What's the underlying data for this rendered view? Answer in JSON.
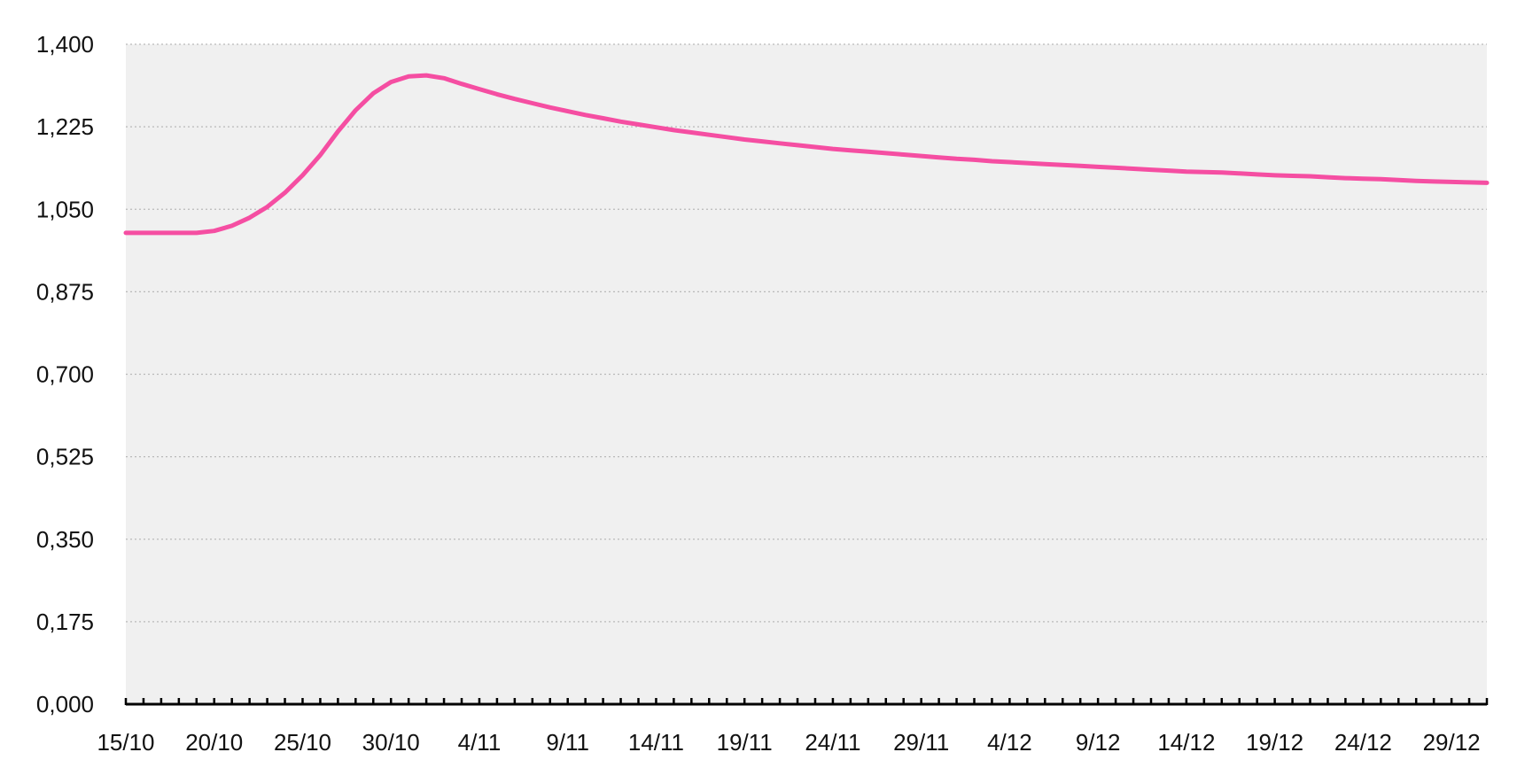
{
  "chart_data": {
    "type": "line",
    "title": "",
    "xlabel": "",
    "ylabel": "",
    "ylim": [
      0,
      1.4
    ],
    "yticks": [
      0,
      0.175,
      0.35,
      0.525,
      0.7,
      0.875,
      1.05,
      1.225,
      1.4
    ],
    "ytick_labels": [
      "0,000",
      "0,175",
      "0,350",
      "0,525",
      "0,700",
      "0,875",
      "1,050",
      "1,225",
      "1,400"
    ],
    "x_start": "15/10",
    "x_end": "31/12",
    "x_count": 78,
    "xtick_labels": [
      "15/10",
      "20/10",
      "25/10",
      "30/10",
      "4/11",
      "9/11",
      "14/11",
      "19/11",
      "24/11",
      "29/11",
      "4/12",
      "9/12",
      "14/12",
      "19/12",
      "24/12",
      "29/12"
    ],
    "xtick_every": 5,
    "grid": true,
    "legend": "none",
    "background": "#f0f0f0",
    "colors": {
      "line": "#f54ea2",
      "grid": "#b9b9b9",
      "axis": "#000000"
    },
    "series": [
      {
        "values": [
          1.0,
          1.0,
          1.0,
          1.0,
          1.0,
          1.004,
          1.015,
          1.032,
          1.055,
          1.085,
          1.122,
          1.165,
          1.215,
          1.26,
          1.296,
          1.32,
          1.332,
          1.334,
          1.328,
          1.316,
          1.305,
          1.294,
          1.284,
          1.275,
          1.266,
          1.258,
          1.25,
          1.243,
          1.236,
          1.23,
          1.224,
          1.218,
          1.213,
          1.208,
          1.203,
          1.198,
          1.194,
          1.19,
          1.186,
          1.182,
          1.178,
          1.175,
          1.172,
          1.169,
          1.166,
          1.163,
          1.16,
          1.157,
          1.155,
          1.152,
          1.15,
          1.148,
          1.146,
          1.144,
          1.142,
          1.14,
          1.138,
          1.136,
          1.134,
          1.132,
          1.13,
          1.129,
          1.128,
          1.126,
          1.124,
          1.122,
          1.121,
          1.12,
          1.118,
          1.116,
          1.115,
          1.114,
          1.112,
          1.11,
          1.109,
          1.108,
          1.107,
          1.106
        ]
      }
    ]
  }
}
